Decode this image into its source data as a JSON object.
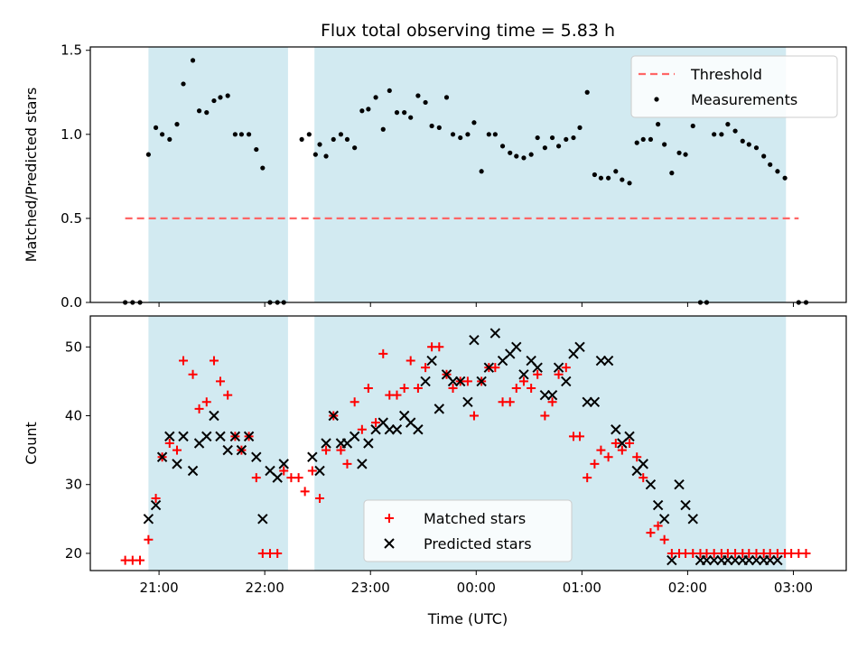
{
  "chart_data": {
    "type": "scatter",
    "title": "Flux total observing time = 5.83 h",
    "xlabel": "Time (UTC)",
    "x_tick_labels": [
      "21:00",
      "22:00",
      "23:00",
      "00:00",
      "01:00",
      "02:00",
      "03:00"
    ],
    "x_tick_hours": [
      21,
      22,
      23,
      24,
      25,
      26,
      27
    ],
    "xlim_hours": [
      20.35,
      27.5
    ],
    "shaded_intervals_hours": [
      [
        20.9,
        22.22
      ],
      [
        22.47,
        26.93
      ]
    ],
    "shade_color": "#add8e6",
    "panels": [
      {
        "ylabel": "Matched/Predicted stars",
        "ylim": [
          0,
          1.52
        ],
        "y_ticks": [
          0.0,
          0.5,
          1.0,
          1.5
        ],
        "y_tick_labels": [
          "0.0",
          "0.5",
          "1.0",
          "1.5"
        ],
        "legend_position": "top-right",
        "series": [
          {
            "name": "Threshold",
            "kind": "line",
            "style": "dashed",
            "color": "#ff6666",
            "x": [
              20.68,
              27.05
            ],
            "y": [
              0.5,
              0.5
            ]
          },
          {
            "name": "Measurements",
            "kind": "dots",
            "color": "#000000",
            "x": [
              20.68,
              20.75,
              20.82,
              20.9,
              20.97,
              21.03,
              21.1,
              21.17,
              21.23,
              21.32,
              21.38,
              21.45,
              21.52,
              21.58,
              21.65,
              21.72,
              21.78,
              21.85,
              21.92,
              21.98,
              22.05,
              22.12,
              22.18,
              22.35,
              22.42,
              22.48,
              22.52,
              22.58,
              22.65,
              22.72,
              22.78,
              22.85,
              22.92,
              22.98,
              23.05,
              23.12,
              23.18,
              23.25,
              23.32,
              23.38,
              23.45,
              23.52,
              23.58,
              23.65,
              23.72,
              23.78,
              23.85,
              23.92,
              23.98,
              24.05,
              24.12,
              24.18,
              24.25,
              24.32,
              24.38,
              24.45,
              24.52,
              24.58,
              24.65,
              24.72,
              24.78,
              24.85,
              24.92,
              24.98,
              25.05,
              25.12,
              25.18,
              25.25,
              25.32,
              25.38,
              25.45,
              25.52,
              25.58,
              25.65,
              25.72,
              25.78,
              25.85,
              25.92,
              25.98,
              26.05,
              26.12,
              26.18,
              26.25,
              26.32,
              26.38,
              26.45,
              26.52,
              26.58,
              26.65,
              26.72,
              26.78,
              26.85,
              26.92,
              27.05,
              27.12
            ],
            "y": [
              0.0,
              0.0,
              0.0,
              0.88,
              1.04,
              1.0,
              0.97,
              1.06,
              1.3,
              1.44,
              1.14,
              1.13,
              1.2,
              1.22,
              1.23,
              1.0,
              1.0,
              1.0,
              0.91,
              0.8,
              0.0,
              0.0,
              0.0,
              0.97,
              1.0,
              0.88,
              0.94,
              0.87,
              0.97,
              1.0,
              0.97,
              0.92,
              1.14,
              1.15,
              1.22,
              1.03,
              1.26,
              1.13,
              1.13,
              1.1,
              1.23,
              1.19,
              1.05,
              1.04,
              1.22,
              1.0,
              0.98,
              1.0,
              1.07,
              0.78,
              1.0,
              1.0,
              0.93,
              0.89,
              0.87,
              0.86,
              0.88,
              0.98,
              0.92,
              0.98,
              0.93,
              0.97,
              0.98,
              1.04,
              1.25,
              0.76,
              0.74,
              0.74,
              0.78,
              0.73,
              0.71,
              0.95,
              0.97,
              0.97,
              1.06,
              0.94,
              0.77,
              0.89,
              0.88,
              1.05,
              0.0,
              0.0,
              1.0,
              1.0,
              1.06,
              1.02,
              0.96,
              0.94,
              0.92,
              0.87,
              0.82,
              0.78,
              0.74,
              0.0,
              0.0
            ]
          }
        ]
      },
      {
        "ylabel": "Count",
        "ylim": [
          17.5,
          54.5
        ],
        "y_ticks": [
          20,
          30,
          40,
          50
        ],
        "y_tick_labels": [
          "20",
          "30",
          "40",
          "50"
        ],
        "legend_position": "lower-center",
        "series": [
          {
            "name": "Matched stars",
            "kind": "plus",
            "color": "#ff0000",
            "x": [
              20.68,
              20.75,
              20.82,
              20.9,
              20.97,
              21.03,
              21.1,
              21.17,
              21.23,
              21.32,
              21.38,
              21.45,
              21.52,
              21.58,
              21.65,
              21.72,
              21.78,
              21.85,
              21.92,
              21.98,
              22.05,
              22.12,
              22.18,
              22.25,
              22.32,
              22.38,
              22.45,
              22.52,
              22.58,
              22.65,
              22.72,
              22.78,
              22.85,
              22.92,
              22.98,
              23.05,
              23.12,
              23.18,
              23.25,
              23.32,
              23.38,
              23.45,
              23.52,
              23.58,
              23.65,
              23.72,
              23.78,
              23.85,
              23.92,
              23.98,
              24.05,
              24.12,
              24.18,
              24.25,
              24.32,
              24.38,
              24.45,
              24.52,
              24.58,
              24.65,
              24.72,
              24.78,
              24.85,
              24.92,
              24.98,
              25.05,
              25.12,
              25.18,
              25.25,
              25.32,
              25.38,
              25.45,
              25.52,
              25.58,
              25.65,
              25.72,
              25.78,
              25.85,
              25.92,
              25.98,
              26.05,
              26.12,
              26.18,
              26.25,
              26.32,
              26.38,
              26.45,
              26.52,
              26.58,
              26.65,
              26.72,
              26.78,
              26.85,
              26.92,
              26.98,
              27.05,
              27.12
            ],
            "y": [
              19,
              19,
              19,
              22,
              28,
              34,
              36,
              35,
              48,
              46,
              41,
              42,
              48,
              45,
              43,
              37,
              35,
              37,
              31,
              20,
              20,
              20,
              32,
              31,
              31,
              29,
              32,
              28,
              35,
              40,
              35,
              33,
              42,
              38,
              44,
              39,
              49,
              43,
              43,
              44,
              48,
              44,
              47,
              50,
              50,
              46,
              44,
              45,
              45,
              40,
              45,
              47,
              47,
              42,
              42,
              44,
              45,
              44,
              46,
              40,
              42,
              46,
              47,
              37,
              37,
              31,
              33,
              35,
              34,
              36,
              35,
              36,
              34,
              31,
              23,
              24,
              22,
              20,
              20,
              20,
              20,
              20,
              20,
              20,
              20,
              20,
              20,
              20,
              20,
              20,
              20,
              20,
              20,
              20,
              20,
              20,
              20
            ],
            "count_note": ""
          },
          {
            "name": "Predicted stars",
            "kind": "cross",
            "color": "#000000",
            "x": [
              20.9,
              20.97,
              21.03,
              21.1,
              21.17,
              21.23,
              21.32,
              21.38,
              21.45,
              21.52,
              21.58,
              21.65,
              21.72,
              21.78,
              21.85,
              21.92,
              21.98,
              22.05,
              22.12,
              22.18,
              22.45,
              22.52,
              22.58,
              22.65,
              22.72,
              22.78,
              22.85,
              22.92,
              22.98,
              23.05,
              23.12,
              23.18,
              23.25,
              23.32,
              23.38,
              23.45,
              23.52,
              23.58,
              23.65,
              23.72,
              23.78,
              23.85,
              23.92,
              23.98,
              24.05,
              24.12,
              24.18,
              24.25,
              24.32,
              24.38,
              24.45,
              24.52,
              24.58,
              24.65,
              24.72,
              24.78,
              24.85,
              24.92,
              24.98,
              25.05,
              25.12,
              25.18,
              25.25,
              25.32,
              25.38,
              25.45,
              25.52,
              25.58,
              25.65,
              25.72,
              25.78,
              25.85,
              25.92,
              25.98,
              26.05,
              26.12,
              26.18,
              26.25,
              26.32,
              26.38,
              26.45,
              26.52,
              26.58,
              26.65,
              26.72,
              26.78,
              26.85
            ],
            "y": [
              25,
              27,
              34,
              37,
              33,
              37,
              32,
              36,
              37,
              40,
              37,
              35,
              37,
              35,
              37,
              34,
              25,
              32,
              31,
              33,
              34,
              32,
              36,
              40,
              36,
              36,
              37,
              33,
              36,
              38,
              39,
              38,
              38,
              40,
              39,
              38,
              45,
              48,
              41,
              46,
              45,
              45,
              42,
              51,
              45,
              47,
              52,
              48,
              49,
              50,
              46,
              48,
              47,
              43,
              43,
              47,
              45,
              49,
              50,
              42,
              42,
              48,
              48,
              38,
              36,
              37,
              32,
              33,
              30,
              27,
              25,
              19,
              30,
              27,
              25,
              19,
              19,
              19,
              19,
              19,
              19,
              19,
              19,
              19,
              19,
              19,
              19
            ]
          }
        ]
      }
    ]
  }
}
